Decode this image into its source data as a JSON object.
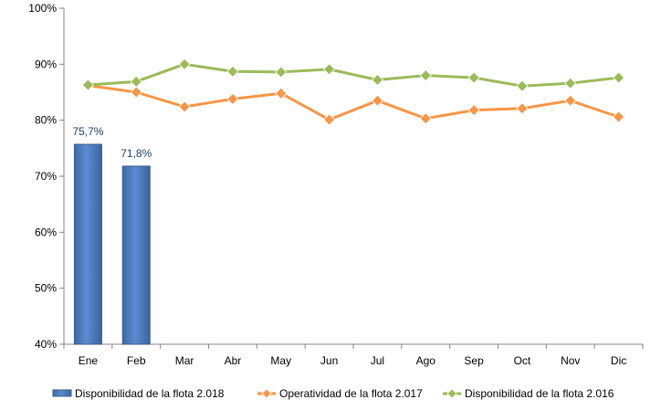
{
  "chart_data": {
    "type": "bar",
    "categories": [
      "Ene",
      "Feb",
      "Mar",
      "Abr",
      "May",
      "Jun",
      "Jul",
      "Ago",
      "Sep",
      "Oct",
      "Nov",
      "Dic"
    ],
    "ylim": [
      40,
      100
    ],
    "yticks": [
      40,
      50,
      60,
      70,
      80,
      90,
      100
    ],
    "ytick_labels": [
      "40%",
      "50%",
      "60%",
      "70%",
      "80%",
      "90%",
      "100%"
    ],
    "grid": false,
    "legend_position": "bottom",
    "series": [
      {
        "name": "Disponibilidad de la flota 2.018",
        "type": "bar",
        "color": "#4f81bd",
        "values": [
          75.7,
          71.8,
          null,
          null,
          null,
          null,
          null,
          null,
          null,
          null,
          null,
          null
        ],
        "data_labels": [
          "75,7%",
          "71,8%"
        ]
      },
      {
        "name": "Operatividad de la flota 2.017",
        "type": "line",
        "color": "#f79646",
        "marker": "diamond",
        "values": [
          86.2,
          85.0,
          82.4,
          83.8,
          84.8,
          80.1,
          83.5,
          80.3,
          81.8,
          82.1,
          83.5,
          80.6
        ]
      },
      {
        "name": "Disponibilidad de la flota 2.016",
        "type": "line",
        "color": "#9bbb59",
        "marker": "diamond",
        "values": [
          86.3,
          86.9,
          90.0,
          88.7,
          88.6,
          89.1,
          87.2,
          88.0,
          87.6,
          86.1,
          86.6,
          87.6
        ]
      }
    ]
  }
}
